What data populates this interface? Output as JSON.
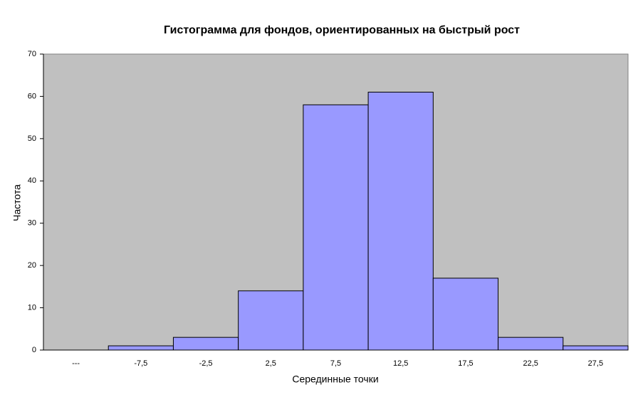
{
  "chart_data": {
    "type": "bar",
    "title": "Гистограмма для фондов, ориентированных на быстрый рост",
    "x_label": "Серединные точки",
    "y_label": "Частота",
    "categories": [
      "---",
      "-7,5",
      "-2,5",
      "2,5",
      "7,5",
      "12,5",
      "17,5",
      "22,5",
      "27,5"
    ],
    "values": [
      0,
      1,
      3,
      14,
      58,
      61,
      17,
      3,
      1
    ],
    "color": "#9999ff",
    "background": "#c0c0c0",
    "ylim": [
      0,
      70
    ],
    "yticks": [
      0,
      10,
      20,
      30,
      40,
      50,
      60,
      70
    ]
  }
}
